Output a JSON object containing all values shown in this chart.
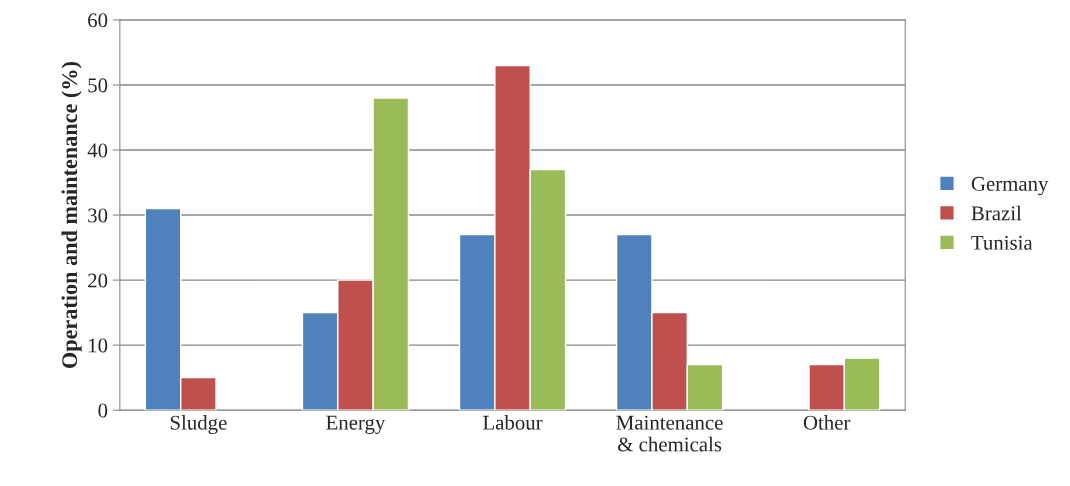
{
  "chart_data": {
    "type": "bar",
    "ylabel": "Operation and maintenance (%)",
    "categories": [
      "Sludge",
      "Energy",
      "Labour",
      "Maintenance\n& chemicals",
      "Other"
    ],
    "series": [
      {
        "name": "Germany",
        "color": "#4f81bd",
        "values": [
          31,
          15,
          27,
          27,
          null
        ]
      },
      {
        "name": "Brazil",
        "color": "#c0504d",
        "values": [
          5,
          20,
          53,
          15,
          7
        ]
      },
      {
        "name": "Tunisia",
        "color": "#9bbb59",
        "values": [
          null,
          48,
          37,
          7,
          8
        ]
      }
    ],
    "ylim": [
      0,
      60
    ],
    "yticks": [
      0,
      10,
      20,
      30,
      40,
      50,
      60
    ],
    "grid": "y",
    "legend": "right"
  }
}
